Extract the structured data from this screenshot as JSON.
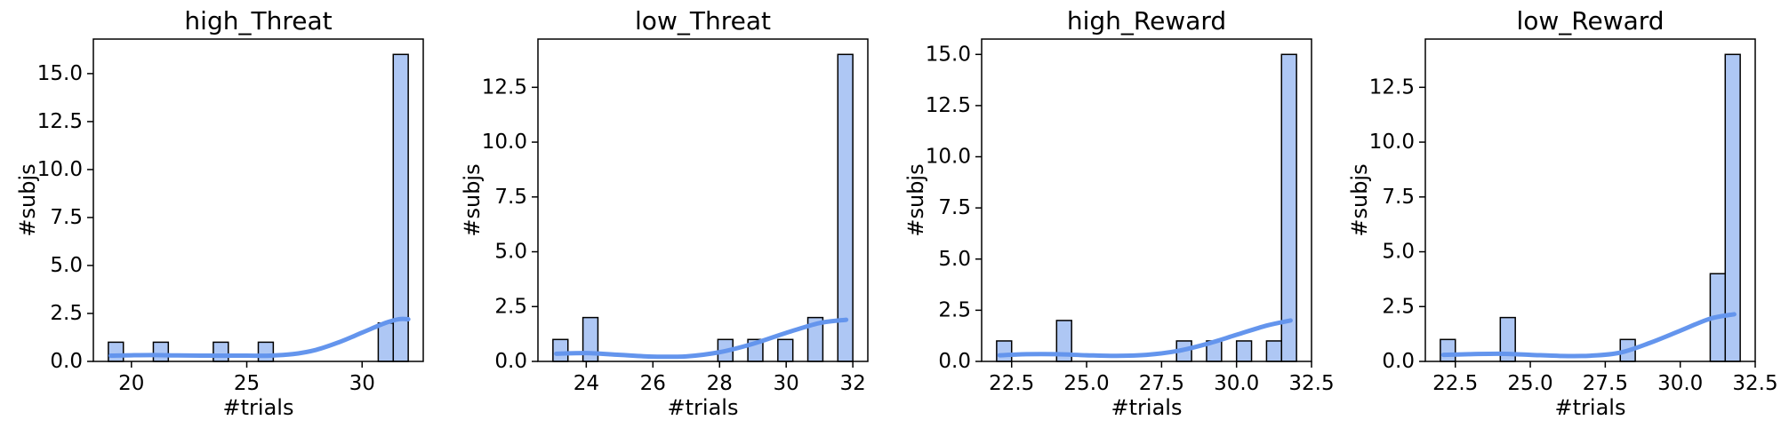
{
  "chart_data": [
    {
      "type": "histogram",
      "title": "high_Threat",
      "xlabel": "#trials",
      "ylabel": "#subjs",
      "xlim": [
        18.35,
        32.65
      ],
      "ylim": [
        0,
        16.8
      ],
      "xticks": [
        20,
        25,
        30
      ],
      "xtick_labels": [
        "20",
        "25",
        "30"
      ],
      "yticks": [
        0,
        2.5,
        5,
        7.5,
        10,
        12.5,
        15
      ],
      "ytick_labels": [
        "0.0",
        "2.5",
        "5.0",
        "7.5",
        "10.0",
        "12.5",
        "15.0"
      ],
      "bin_edges": [
        19.0,
        19.65,
        20.3,
        20.95,
        21.6,
        22.25,
        22.9,
        23.55,
        24.2,
        24.85,
        25.5,
        26.15,
        26.8,
        27.45,
        28.1,
        28.75,
        29.4,
        30.05,
        30.7,
        31.35,
        32.0
      ],
      "counts": [
        1,
        0,
        0,
        1,
        0,
        0,
        0,
        1,
        0,
        0,
        1,
        0,
        0,
        0,
        0,
        0,
        0,
        0,
        2,
        16
      ],
      "kde": {
        "x": [
          19.1,
          20,
          21,
          22,
          23,
          24,
          25,
          26,
          27,
          28,
          29,
          30,
          31,
          31.6,
          32
        ],
        "y": [
          0.3,
          0.32,
          0.33,
          0.31,
          0.3,
          0.3,
          0.3,
          0.3,
          0.38,
          0.6,
          1.0,
          1.5,
          2.0,
          2.2,
          2.2
        ]
      },
      "colors": {
        "bar_fill": "#aec7f4",
        "bar_edge": "#000000",
        "kde": "#6495ed"
      }
    },
    {
      "type": "histogram",
      "title": "low_Threat",
      "xlabel": "#trials",
      "ylabel": "#subjs",
      "xlim": [
        22.55,
        32.45
      ],
      "ylim": [
        0,
        14.7
      ],
      "xticks": [
        24,
        26,
        28,
        30,
        32
      ],
      "xtick_labels": [
        "24",
        "26",
        "28",
        "30",
        "32"
      ],
      "yticks": [
        0,
        2.5,
        5,
        7.5,
        10,
        12.5
      ],
      "ytick_labels": [
        "0.0",
        "2.5",
        "5.0",
        "7.5",
        "10.0",
        "12.5"
      ],
      "bin_edges": [
        23.0,
        23.45,
        23.9,
        24.35,
        24.8,
        25.25,
        25.7,
        26.15,
        26.6,
        27.05,
        27.5,
        27.95,
        28.4,
        28.85,
        29.3,
        29.75,
        30.2,
        30.65,
        31.1,
        31.55,
        32.0
      ],
      "counts": [
        1,
        0,
        2,
        0,
        0,
        0,
        0,
        0,
        0,
        0,
        0,
        1,
        0,
        1,
        0,
        1,
        0,
        2,
        0,
        14
      ],
      "kde": {
        "x": [
          23.1,
          24,
          25,
          26,
          27,
          28,
          29,
          30,
          31,
          31.8
        ],
        "y": [
          0.35,
          0.38,
          0.3,
          0.22,
          0.23,
          0.42,
          0.8,
          1.3,
          1.75,
          1.9
        ]
      },
      "colors": {
        "bar_fill": "#aec7f4",
        "bar_edge": "#000000",
        "kde": "#6495ed"
      }
    },
    {
      "type": "histogram",
      "title": "high_Reward",
      "xlabel": "#trials",
      "ylabel": "#subjs",
      "xlim": [
        21.5,
        32.5
      ],
      "ylim": [
        0,
        15.75
      ],
      "xticks": [
        22.5,
        25,
        27.5,
        30,
        32.5
      ],
      "xtick_labels": [
        "22.5",
        "25.0",
        "27.5",
        "30.0",
        "32.5"
      ],
      "yticks": [
        0,
        2.5,
        5,
        7.5,
        10,
        12.5,
        15
      ],
      "ytick_labels": [
        "0.0",
        "2.5",
        "5.0",
        "7.5",
        "10.0",
        "12.5",
        "15.0"
      ],
      "bin_edges": [
        22.0,
        22.5,
        23.0,
        23.5,
        24.0,
        24.5,
        25.0,
        25.5,
        26.0,
        26.5,
        27.0,
        27.5,
        28.0,
        28.5,
        29.0,
        29.5,
        30.0,
        30.5,
        31.0,
        31.5,
        32.0
      ],
      "counts": [
        1,
        0,
        0,
        0,
        2,
        0,
        0,
        0,
        0,
        0,
        0,
        0,
        1,
        0,
        1,
        0,
        1,
        0,
        1,
        15
      ],
      "kde": {
        "x": [
          22.1,
          23,
          24,
          25,
          26,
          27,
          28,
          29,
          30,
          31,
          31.8
        ],
        "y": [
          0.3,
          0.35,
          0.35,
          0.3,
          0.27,
          0.32,
          0.5,
          0.85,
          1.3,
          1.75,
          2.0
        ]
      },
      "colors": {
        "bar_fill": "#aec7f4",
        "bar_edge": "#000000",
        "kde": "#6495ed"
      }
    },
    {
      "type": "histogram",
      "title": "low_Reward",
      "xlabel": "#trials",
      "ylabel": "#subjs",
      "xlim": [
        21.5,
        32.5
      ],
      "ylim": [
        0,
        14.7
      ],
      "xticks": [
        22.5,
        25,
        27.5,
        30,
        32.5
      ],
      "xtick_labels": [
        "22.5",
        "25.0",
        "27.5",
        "30.0",
        "32.5"
      ],
      "yticks": [
        0,
        2.5,
        5,
        7.5,
        10,
        12.5
      ],
      "ytick_labels": [
        "0.0",
        "2.5",
        "5.0",
        "7.5",
        "10.0",
        "12.5"
      ],
      "bin_edges": [
        22.0,
        22.5,
        23.0,
        23.5,
        24.0,
        24.5,
        25.0,
        25.5,
        26.0,
        26.5,
        27.0,
        27.5,
        28.0,
        28.5,
        29.0,
        29.5,
        30.0,
        30.5,
        31.0,
        31.5,
        32.0
      ],
      "counts": [
        1,
        0,
        0,
        0,
        2,
        0,
        0,
        0,
        0,
        0,
        0,
        0,
        1,
        0,
        0,
        0,
        0,
        0,
        4,
        14
      ],
      "kde": {
        "x": [
          22.1,
          23,
          24,
          25,
          26,
          27,
          28,
          29,
          30,
          31,
          31.8
        ],
        "y": [
          0.3,
          0.33,
          0.35,
          0.3,
          0.25,
          0.26,
          0.4,
          0.85,
          1.4,
          1.95,
          2.15
        ]
      },
      "colors": {
        "bar_fill": "#aec7f4",
        "bar_edge": "#000000",
        "kde": "#6495ed"
      }
    }
  ]
}
